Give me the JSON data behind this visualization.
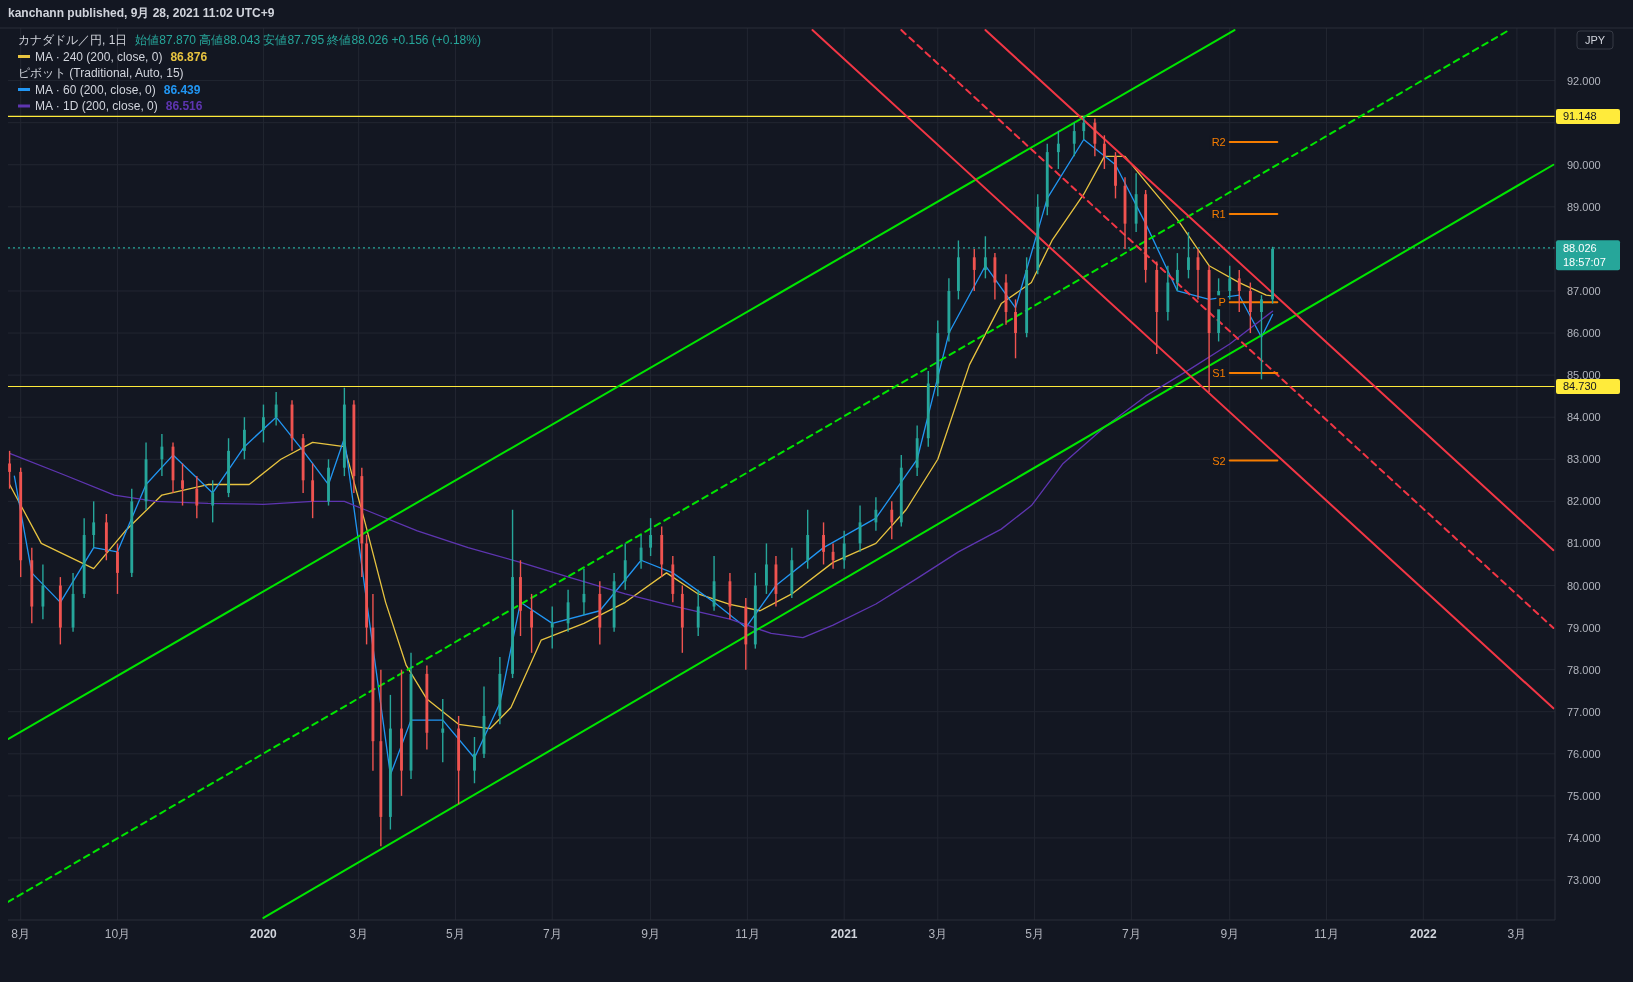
{
  "chart_data": {
    "type": "candlestick",
    "title": "カナダドル／円, 1日",
    "subtitle": "始値87.870 高値88.043 安値87.795 終値88.026 +0.156 (+0.18%)",
    "annotations": [
      "kanchann published, 9月 28, 2021 11:02 UTC+9",
      "ピボット (Traditional, Auto, 15)",
      "JPY",
      "18:57:07",
      "86.876",
      "86.439",
      "86.516"
    ],
    "x": [
      "2019-07-25",
      "2019-08-01",
      "2019-08-08",
      "2019-08-15",
      "2019-08-26",
      "2019-09-03",
      "2019-09-10",
      "2019-09-16",
      "2019-09-24",
      "2019-10-01",
      "2019-10-10",
      "2019-10-19",
      "2019-10-29",
      "2019-11-05",
      "2019-11-11",
      "2019-11-20",
      "2019-11-30",
      "2019-12-10",
      "2019-12-20",
      "2020-01-01",
      "2020-01-09",
      "2020-01-19",
      "2020-01-26",
      "2020-02-01",
      "2020-02-11",
      "2020-02-21",
      "2020-02-27",
      "2020-03-03",
      "2020-03-06",
      "2020-03-10",
      "2020-03-15",
      "2020-03-21",
      "2020-03-28",
      "2020-04-03",
      "2020-04-13",
      "2020-04-23",
      "2020-05-03",
      "2020-05-13",
      "2020-05-19",
      "2020-05-29",
      "2020-06-06",
      "2020-06-11",
      "2020-06-18",
      "2020-07-01",
      "2020-07-11",
      "2020-07-21",
      "2020-07-31",
      "2020-08-09",
      "2020-08-16",
      "2020-08-26",
      "2020-09-01",
      "2020-09-08",
      "2020-09-15",
      "2020-09-21",
      "2020-10-01",
      "2020-10-11",
      "2020-10-21",
      "2020-10-31",
      "2020-11-06",
      "2020-11-13",
      "2020-11-19",
      "2020-11-29",
      "2020-12-09",
      "2020-12-19",
      "2020-12-25",
      "2021-01-01",
      "2021-01-11",
      "2021-01-21",
      "2021-01-31",
      "2021-02-06",
      "2021-02-16",
      "2021-02-23",
      "2021-03-01",
      "2021-03-08",
      "2021-03-14",
      "2021-03-24",
      "2021-03-31",
      "2021-04-06",
      "2021-04-13",
      "2021-04-19",
      "2021-04-26",
      "2021-05-03",
      "2021-05-09",
      "2021-05-16",
      "2021-05-26",
      "2021-06-01",
      "2021-06-08",
      "2021-06-14",
      "2021-06-21",
      "2021-06-27",
      "2021-07-04",
      "2021-07-10",
      "2021-07-17",
      "2021-07-24",
      "2021-07-30",
      "2021-08-06",
      "2021-08-12",
      "2021-08-19",
      "2021-08-25",
      "2021-09-01",
      "2021-09-07",
      "2021-09-14",
      "2021-09-21",
      "2021-09-28"
    ],
    "ohlc": [
      [
        82.9,
        83.2,
        82.3,
        82.7
      ],
      [
        82.7,
        82.8,
        80.2,
        80.6
      ],
      [
        80.6,
        80.9,
        79.1,
        79.5
      ],
      [
        79.5,
        80.5,
        79.2,
        80.0
      ],
      [
        80.0,
        80.2,
        78.6,
        79.0
      ],
      [
        79.0,
        80.3,
        78.9,
        79.8
      ],
      [
        79.8,
        81.6,
        79.7,
        81.2
      ],
      [
        81.2,
        82.0,
        80.9,
        81.5
      ],
      [
        81.5,
        81.7,
        80.6,
        80.8
      ],
      [
        80.8,
        81.0,
        79.8,
        80.3
      ],
      [
        80.3,
        82.3,
        80.2,
        82.0
      ],
      [
        82.0,
        83.4,
        81.8,
        83.0
      ],
      [
        83.0,
        83.6,
        82.6,
        83.3
      ],
      [
        83.3,
        83.4,
        82.2,
        82.5
      ],
      [
        82.5,
        82.9,
        81.9,
        82.3
      ],
      [
        82.3,
        82.6,
        81.6,
        81.9
      ],
      [
        81.9,
        82.5,
        81.5,
        82.2
      ],
      [
        82.2,
        83.5,
        82.1,
        83.2
      ],
      [
        83.2,
        84.0,
        83.0,
        83.7
      ],
      [
        83.7,
        84.3,
        83.4,
        84.0
      ],
      [
        84.0,
        84.6,
        83.8,
        84.3
      ],
      [
        84.3,
        84.4,
        83.2,
        83.5
      ],
      [
        83.5,
        83.6,
        82.2,
        82.5
      ],
      [
        82.5,
        82.9,
        81.6,
        82.0
      ],
      [
        82.0,
        83.0,
        81.9,
        82.8
      ],
      [
        82.8,
        84.7,
        82.6,
        84.3
      ],
      [
        84.3,
        84.4,
        82.2,
        82.6
      ],
      [
        82.6,
        82.8,
        80.2,
        81.0
      ],
      [
        81.0,
        81.2,
        78.6,
        79.0
      ],
      [
        79.0,
        79.8,
        75.6,
        76.3
      ],
      [
        76.3,
        78.0,
        73.8,
        74.5
      ],
      [
        74.5,
        77.4,
        74.2,
        76.6
      ],
      [
        76.6,
        78.0,
        75.0,
        75.6
      ],
      [
        75.6,
        78.4,
        75.4,
        77.9
      ],
      [
        77.9,
        78.1,
        76.1,
        76.5
      ],
      [
        76.5,
        77.3,
        75.8,
        76.6
      ],
      [
        76.6,
        76.9,
        74.8,
        75.6
      ],
      [
        75.6,
        76.4,
        75.3,
        76.0
      ],
      [
        76.0,
        77.6,
        75.9,
        76.9
      ],
      [
        76.9,
        78.3,
        76.7,
        77.9
      ],
      [
        77.9,
        81.8,
        77.8,
        80.2
      ],
      [
        80.2,
        80.6,
        78.8,
        79.4
      ],
      [
        79.4,
        79.8,
        78.4,
        79.0
      ],
      [
        79.0,
        79.5,
        78.5,
        79.1
      ],
      [
        79.1,
        79.9,
        78.9,
        79.6
      ],
      [
        79.6,
        80.4,
        79.3,
        79.8
      ],
      [
        79.8,
        80.1,
        78.6,
        79.0
      ],
      [
        79.0,
        80.3,
        78.9,
        80.1
      ],
      [
        80.1,
        81.0,
        79.9,
        80.6
      ],
      [
        80.6,
        81.2,
        80.4,
        80.9
      ],
      [
        80.9,
        81.6,
        80.7,
        81.2
      ],
      [
        81.2,
        81.4,
        80.2,
        80.5
      ],
      [
        80.5,
        80.7,
        79.6,
        79.8
      ],
      [
        79.8,
        80.0,
        78.4,
        79.0
      ],
      [
        79.0,
        79.9,
        78.8,
        79.5
      ],
      [
        79.5,
        80.7,
        79.4,
        80.1
      ],
      [
        80.1,
        80.3,
        79.2,
        79.5
      ],
      [
        79.5,
        79.7,
        78.0,
        78.6
      ],
      [
        78.6,
        80.3,
        78.5,
        80.0
      ],
      [
        80.0,
        81.0,
        79.8,
        80.5
      ],
      [
        80.5,
        80.7,
        79.5,
        79.8
      ],
      [
        79.8,
        80.9,
        79.7,
        80.6
      ],
      [
        80.6,
        81.8,
        80.4,
        81.2
      ],
      [
        81.2,
        81.5,
        80.5,
        80.8
      ],
      [
        80.8,
        81.0,
        80.4,
        80.6
      ],
      [
        80.6,
        81.3,
        80.4,
        81.0
      ],
      [
        81.0,
        81.9,
        80.8,
        81.5
      ],
      [
        81.5,
        82.1,
        81.3,
        81.8
      ],
      [
        81.8,
        82.0,
        81.1,
        81.5
      ],
      [
        81.5,
        83.1,
        81.4,
        82.8
      ],
      [
        82.8,
        83.8,
        82.6,
        83.5
      ],
      [
        83.5,
        85.1,
        83.3,
        84.8
      ],
      [
        84.8,
        86.3,
        84.5,
        86.0
      ],
      [
        86.0,
        87.3,
        85.8,
        87.0
      ],
      [
        87.0,
        88.2,
        86.8,
        87.8
      ],
      [
        87.8,
        88.0,
        87.0,
        87.5
      ],
      [
        87.5,
        88.3,
        87.3,
        87.8
      ],
      [
        87.8,
        87.9,
        86.8,
        87.2
      ],
      [
        87.2,
        87.4,
        86.2,
        86.5
      ],
      [
        86.5,
        86.8,
        85.4,
        86.0
      ],
      [
        86.0,
        87.8,
        85.9,
        87.5
      ],
      [
        87.5,
        89.3,
        87.4,
        89.0
      ],
      [
        89.0,
        90.5,
        88.8,
        90.3
      ],
      [
        90.3,
        90.8,
        89.9,
        90.5
      ],
      [
        90.5,
        91.0,
        90.2,
        90.8
      ],
      [
        90.8,
        91.15,
        90.6,
        91.0
      ],
      [
        91.0,
        91.1,
        90.2,
        90.5
      ],
      [
        90.5,
        90.7,
        89.9,
        90.2
      ],
      [
        90.2,
        90.3,
        89.2,
        89.5
      ],
      [
        89.5,
        89.7,
        88.0,
        88.6
      ],
      [
        88.6,
        89.8,
        88.4,
        89.3
      ],
      [
        89.3,
        89.4,
        87.2,
        87.5
      ],
      [
        87.5,
        87.7,
        85.5,
        86.5
      ],
      [
        86.5,
        87.6,
        86.3,
        87.2
      ],
      [
        87.2,
        87.9,
        87.0,
        87.5
      ],
      [
        87.5,
        88.4,
        87.3,
        87.8
      ],
      [
        87.8,
        88.0,
        86.8,
        87.5
      ],
      [
        87.5,
        87.6,
        84.6,
        86.0
      ],
      [
        86.0,
        87.3,
        85.8,
        87.0
      ],
      [
        87.0,
        87.6,
        86.8,
        87.3
      ],
      [
        87.3,
        87.5,
        86.5,
        87.0
      ],
      [
        87.0,
        87.2,
        86.0,
        86.5
      ],
      [
        86.5,
        86.9,
        84.9,
        86.8
      ],
      [
        86.8,
        88.05,
        86.7,
        88.0
      ]
    ],
    "series": [
      {
        "type": "line",
        "name": "MA · 240 (200, close, 0)",
        "color": "#e8c440",
        "x": [
          "2019-07-25",
          "2019-08-14",
          "2019-09-16",
          "2019-10-06",
          "2019-10-29",
          "2019-11-27",
          "2019-12-23",
          "2020-01-12",
          "2020-02-01",
          "2020-02-21",
          "2020-03-05",
          "2020-03-18",
          "2020-03-31",
          "2020-04-13",
          "2020-05-03",
          "2020-05-23",
          "2020-06-05",
          "2020-06-24",
          "2020-07-21",
          "2020-08-16",
          "2020-09-11",
          "2020-10-01",
          "2020-10-21",
          "2020-11-09",
          "2020-11-29",
          "2020-12-25",
          "2021-01-21",
          "2021-02-09",
          "2021-03-01",
          "2021-03-21",
          "2021-04-10",
          "2021-04-29",
          "2021-05-12",
          "2021-06-01",
          "2021-06-14",
          "2021-06-27",
          "2021-07-10",
          "2021-07-30",
          "2021-08-19",
          "2021-09-07",
          "2021-09-24",
          "2021-09-28"
        ],
        "values": [
          82.4,
          81.0,
          80.4,
          81.3,
          82.15,
          82.4,
          82.4,
          83.0,
          83.4,
          83.3,
          81.5,
          79.6,
          78.1,
          77.3,
          76.7,
          76.6,
          77.1,
          78.7,
          79.1,
          79.6,
          80.3,
          79.8,
          79.55,
          79.4,
          79.8,
          80.55,
          81.0,
          81.8,
          83.0,
          85.25,
          86.7,
          87.2,
          88.2,
          89.3,
          90.2,
          90.2,
          89.6,
          88.7,
          87.6,
          87.2,
          86.9,
          86.88
        ]
      },
      {
        "type": "line",
        "name": "MA · 60 (200, close, 0)",
        "color": "#2196f3",
        "x": [
          "2019-07-28",
          "2019-08-08",
          "2019-08-26",
          "2019-09-16",
          "2019-10-01",
          "2019-10-19",
          "2019-11-05",
          "2019-11-30",
          "2019-12-20",
          "2020-01-09",
          "2020-01-26",
          "2020-02-11",
          "2020-02-21",
          "2020-03-21",
          "2020-04-03",
          "2020-04-23",
          "2020-05-13",
          "2020-05-29",
          "2020-06-11",
          "2020-07-01",
          "2020-07-31",
          "2020-08-26",
          "2020-09-15",
          "2020-10-11",
          "2020-10-31",
          "2020-11-19",
          "2020-12-19",
          "2021-01-21",
          "2021-02-16",
          "2021-03-08",
          "2021-03-31",
          "2021-04-19",
          "2021-05-09",
          "2021-06-01",
          "2021-06-21",
          "2021-07-10",
          "2021-07-30",
          "2021-08-19",
          "2021-09-07",
          "2021-09-21",
          "2021-09-28"
        ],
        "values": [
          82.6,
          80.3,
          79.6,
          80.9,
          80.8,
          82.4,
          83.1,
          82.2,
          83.3,
          84.0,
          83.2,
          82.4,
          83.5,
          75.5,
          76.8,
          76.8,
          75.9,
          77.2,
          79.6,
          79.1,
          79.4,
          80.6,
          80.3,
          79.6,
          79.0,
          80.0,
          80.9,
          81.6,
          83.0,
          86.0,
          87.6,
          86.6,
          89.2,
          90.6,
          90.0,
          88.6,
          87.0,
          86.8,
          86.9,
          85.9,
          86.44
        ]
      },
      {
        "type": "line",
        "name": "MA · 1D (200, close, 0)",
        "color": "#5e35b1",
        "x": [
          "2019-07-25",
          "2019-08-27",
          "2019-09-29",
          "2019-10-25",
          "2019-11-27",
          "2020-01-01",
          "2020-02-01",
          "2020-02-21",
          "2020-03-05",
          "2020-04-07",
          "2020-05-09",
          "2020-06-11",
          "2020-07-14",
          "2020-08-16",
          "2020-09-11",
          "2020-10-21",
          "2020-11-16",
          "2020-12-06",
          "2020-12-25",
          "2021-01-21",
          "2021-02-16",
          "2021-03-14",
          "2021-04-10",
          "2021-04-29",
          "2021-05-19",
          "2021-06-14",
          "2021-07-10",
          "2021-08-06",
          "2021-09-01",
          "2021-09-28"
        ],
        "values": [
          83.14,
          82.65,
          82.15,
          82.0,
          81.95,
          81.93,
          82.0,
          82.0,
          81.8,
          81.3,
          80.9,
          80.55,
          80.17,
          79.8,
          79.55,
          79.2,
          78.86,
          78.76,
          79.06,
          79.56,
          80.17,
          80.8,
          81.34,
          81.9,
          82.9,
          83.76,
          84.5,
          85.12,
          85.74,
          86.52
        ]
      },
      {
        "type": "line",
        "color": "#00e600",
        "x": [
          "2019-07-24",
          "2021-09-04"
        ],
        "values": [
          76.35,
          93.2
        ]
      },
      {
        "type": "line",
        "color": "#00e600",
        "x": [
          "2020-01-01",
          "2022-03-24"
        ],
        "values": [
          72.1,
          90.0
        ]
      },
      {
        "type": "line",
        "color": "#00e600",
        "line_style": "dashed",
        "x": [
          "2019-07-24",
          "2022-02-24"
        ],
        "values": [
          72.48,
          93.2
        ]
      },
      {
        "type": "line",
        "color": "#f23645",
        "x": [
          "2020-12-12",
          "2022-03-24"
        ],
        "values": [
          93.2,
          77.08
        ]
      },
      {
        "type": "line",
        "color": "#f23645",
        "x": [
          "2021-03-31",
          "2022-03-24"
        ],
        "values": [
          93.2,
          80.84
        ]
      },
      {
        "type": "line",
        "color": "#f23645",
        "line_style": "dashed",
        "x": [
          "2021-02-06",
          "2022-03-24"
        ],
        "values": [
          93.2,
          78.99
        ]
      },
      {
        "type": "line",
        "name": "R2",
        "color": "#f57c00",
        "x": [
          "2021-09-01",
          "2021-10-01"
        ],
        "values": [
          90.54,
          90.54
        ]
      },
      {
        "type": "line",
        "name": "R1",
        "color": "#f57c00",
        "x": [
          "2021-09-01",
          "2021-10-01"
        ],
        "values": [
          88.83,
          88.83
        ]
      },
      {
        "type": "line",
        "name": "P",
        "color": "#f57c00",
        "x": [
          "2021-09-01",
          "2021-10-01"
        ],
        "values": [
          86.73,
          86.73
        ]
      },
      {
        "type": "line",
        "name": "S1",
        "color": "#f57c00",
        "x": [
          "2021-09-01",
          "2021-10-01"
        ],
        "values": [
          85.05,
          85.05
        ]
      },
      {
        "type": "line",
        "name": "S2",
        "color": "#f57c00",
        "x": [
          "2021-09-01",
          "2021-10-01"
        ],
        "values": [
          82.97,
          82.97
        ]
      }
    ],
    "ref_lines": [
      {
        "axis": "y",
        "value": 91.148,
        "label": "91.148",
        "color": "#ffeb3b"
      },
      {
        "axis": "y",
        "value": 84.73,
        "label": "84.730",
        "color": "#ffeb3b"
      },
      {
        "axis": "y",
        "value": 88.026,
        "label": "88.026",
        "color": "#26a69a",
        "line_style": "dotted"
      }
    ],
    "xlim": [
      "2019-07-24",
      "2022-03-25"
    ],
    "xticks": [
      {
        "value": "2019-08-01",
        "label": "8月"
      },
      {
        "value": "2019-10-01",
        "label": "10月"
      },
      {
        "value": "2020-01-01",
        "label": "2020"
      },
      {
        "value": "2020-03-01",
        "label": "3月"
      },
      {
        "value": "2020-05-01",
        "label": "5月"
      },
      {
        "value": "2020-07-01",
        "label": "7月"
      },
      {
        "value": "2020-09-01",
        "label": "9月"
      },
      {
        "value": "2020-11-01",
        "label": "11月"
      },
      {
        "value": "2021-01-01",
        "label": "2021"
      },
      {
        "value": "2021-03-01",
        "label": "3月"
      },
      {
        "value": "2021-05-01",
        "label": "5月"
      },
      {
        "value": "2021-07-01",
        "label": "7月"
      },
      {
        "value": "2021-09-01",
        "label": "9月"
      },
      {
        "value": "2021-11-01",
        "label": "11月"
      },
      {
        "value": "2022-01-01",
        "label": "2022"
      },
      {
        "value": "2022-03-01",
        "label": "3月"
      }
    ],
    "ylim": [
      72.05,
      93.25
    ],
    "yticks": [
      {
        "value": 73,
        "label": "73.000"
      },
      {
        "value": 74,
        "label": "74.000"
      },
      {
        "value": 75,
        "label": "75.000"
      },
      {
        "value": 76,
        "label": "76.000"
      },
      {
        "value": 77,
        "label": "77.000"
      },
      {
        "value": 78,
        "label": "78.000"
      },
      {
        "value": 79,
        "label": "79.000"
      },
      {
        "value": 80,
        "label": "80.000"
      },
      {
        "value": 81,
        "label": "81.000"
      },
      {
        "value": 82,
        "label": "82.000"
      },
      {
        "value": 83,
        "label": "83.000"
      },
      {
        "value": 84,
        "label": "84.000"
      },
      {
        "value": 85,
        "label": "85.000"
      },
      {
        "value": 86,
        "label": "86.000"
      },
      {
        "value": 87,
        "label": "87.000"
      },
      {
        "value": 88,
        "label": null
      },
      {
        "value": 89,
        "label": "89.000"
      },
      {
        "value": 90,
        "label": "90.000"
      },
      {
        "value": 91,
        "label": null
      },
      {
        "value": 92,
        "label": "92.000"
      }
    ],
    "grid": true,
    "legend": "top left"
  }
}
